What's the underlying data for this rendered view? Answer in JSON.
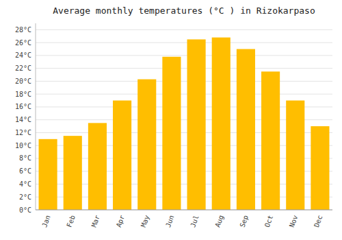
{
  "chart_data": {
    "type": "bar",
    "title": "Average monthly temperatures (°C ) in Rizokarpaso",
    "categories": [
      "Jan",
      "Feb",
      "Mar",
      "Apr",
      "May",
      "Jun",
      "Jul",
      "Aug",
      "Sep",
      "Oct",
      "Nov",
      "Dec"
    ],
    "values": [
      11,
      11.5,
      13.5,
      17,
      20.3,
      23.8,
      26.5,
      26.8,
      25,
      21.5,
      17,
      13
    ],
    "color": "#FFBE00",
    "ylim": [
      0,
      29
    ],
    "yticks": [
      {
        "value": 0,
        "label": "0°C"
      },
      {
        "value": 2,
        "label": "2°C"
      },
      {
        "value": 4,
        "label": "4°C"
      },
      {
        "value": 6,
        "label": "6°C"
      },
      {
        "value": 8,
        "label": "8°C"
      },
      {
        "value": 10,
        "label": "10°C"
      },
      {
        "value": 12,
        "label": "12°C"
      },
      {
        "value": 14,
        "label": "14°C"
      },
      {
        "value": 16,
        "label": "16°C"
      },
      {
        "value": 18,
        "label": "18°C"
      },
      {
        "value": 20,
        "label": "20°C"
      },
      {
        "value": 22,
        "label": "22°C"
      },
      {
        "value": 24,
        "label": "24°C"
      },
      {
        "value": 26,
        "label": "26°C"
      },
      {
        "value": 28,
        "label": "28°C"
      }
    ],
    "grid": true
  }
}
